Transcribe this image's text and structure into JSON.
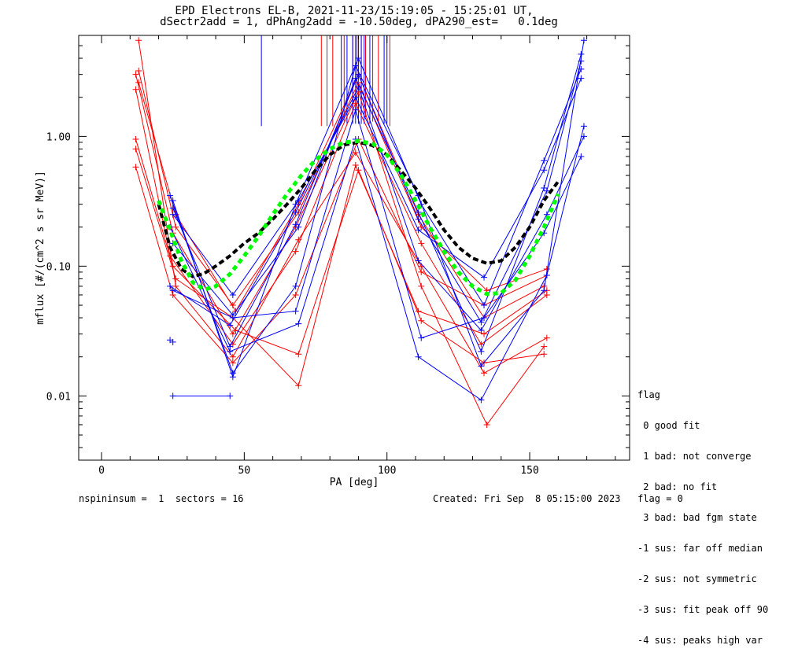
{
  "title_line1": "EPD Electrons EL-B, 2021-11-23/15:19:05 - 15:25:01 UT,",
  "title_line2": "dSectr2add = 1, dPhAng2add = -10.50deg, dPA290_est=   0.1deg",
  "footer_left": "nspininsum =  1  sectors = 16",
  "footer_right": "Created: Fri Sep  8 05:15:00 2023   flag = 0",
  "legend": {
    "title": "flag",
    "items": [
      " 0 good fit",
      " 1 bad: not converge",
      " 2 bad: no fit",
      " 3 bad: bad fgm state",
      "-1 sus: far off median",
      "-2 sus: not symmetric",
      "-3 sus: fit peak off 90",
      "-4 sus: peaks high var"
    ]
  },
  "colors": {
    "red": "#ff0000",
    "blue": "#0000ff",
    "black": "#000000",
    "green": "#00ff00"
  },
  "chart_data": {
    "type": "line",
    "xlabel": "PA [deg]",
    "ylabel": "mflux [#/(cm^2 s sr MeV)]",
    "xlim": [
      -8,
      185
    ],
    "ylim": [
      0.0032,
      6
    ],
    "yscale": "log",
    "xticks": [
      0,
      50,
      100,
      150
    ],
    "yticks": [
      0.01,
      0.1,
      1.0
    ],
    "ytick_labels": [
      "0.01",
      "0.10",
      "1.00"
    ],
    "series": [
      {
        "color": "red",
        "x": [
          13,
          26,
          46,
          69,
          89,
          112,
          134,
          156
        ],
        "y": [
          5.5,
          0.07,
          0.02,
          0.16,
          0.75,
          0.1,
          0.015,
          0.028
        ]
      },
      {
        "color": "red",
        "x": [
          12,
          25,
          46,
          68,
          90,
          112,
          135,
          155
        ],
        "y": [
          3.0,
          0.18,
          0.03,
          0.2,
          2.2,
          0.07,
          0.006,
          0.024
        ]
      },
      {
        "color": "red",
        "x": [
          13,
          26,
          47,
          69,
          90,
          111,
          134,
          155
        ],
        "y": [
          2.6,
          0.25,
          0.045,
          0.3,
          3.0,
          0.25,
          0.04,
          0.07
        ]
      },
      {
        "color": "red",
        "x": [
          12,
          24,
          46,
          68,
          89,
          112,
          133,
          156
        ],
        "y": [
          2.3,
          0.12,
          0.025,
          0.13,
          1.8,
          0.15,
          0.025,
          0.06
        ]
      },
      {
        "color": "red",
        "x": [
          12,
          25,
          47,
          69,
          90,
          112,
          134,
          155
        ],
        "y": [
          0.95,
          0.1,
          0.032,
          0.021,
          0.55,
          0.038,
          0.018,
          0.021
        ]
      },
      {
        "color": "red",
        "x": [
          12,
          26,
          46,
          69,
          89,
          111,
          134,
          156
        ],
        "y": [
          0.8,
          0.08,
          0.04,
          0.012,
          0.6,
          0.045,
          0.03,
          0.065
        ]
      },
      {
        "color": "red",
        "x": [
          12,
          25,
          46,
          68,
          90,
          112,
          134,
          156
        ],
        "y": [
          0.58,
          0.06,
          0.018,
          0.06,
          0.95,
          0.09,
          0.05,
          0.085
        ]
      },
      {
        "color": "red",
        "x": [
          13,
          26,
          46,
          69,
          90,
          112,
          135,
          156
        ],
        "y": [
          3.2,
          0.2,
          0.05,
          0.26,
          2.6,
          0.2,
          0.065,
          0.095
        ]
      },
      {
        "color": "blue",
        "x": [
          24,
          46,
          68,
          89,
          111,
          133,
          155,
          169
        ],
        "y": [
          0.35,
          0.015,
          0.07,
          3.5,
          0.35,
          0.017,
          0.065,
          5.5
        ]
      },
      {
        "color": "blue",
        "x": [
          25,
          45,
          68,
          90,
          111,
          133,
          156,
          168
        ],
        "y": [
          0.28,
          0.024,
          0.21,
          3.0,
          0.23,
          0.037,
          0.38,
          3.8
        ]
      },
      {
        "color": "blue",
        "x": [
          25,
          46,
          69,
          89,
          111,
          134,
          155,
          168
        ],
        "y": [
          0.25,
          0.06,
          0.32,
          2.0,
          0.19,
          0.082,
          0.55,
          2.8
        ]
      },
      {
        "color": "blue",
        "x": [
          24,
          45,
          68,
          90,
          111,
          133,
          156,
          169
        ],
        "y": [
          0.07,
          0.035,
          0.26,
          2.4,
          0.11,
          0.032,
          0.25,
          1.0
        ]
      },
      {
        "color": "blue",
        "x": [
          25,
          46,
          68,
          89,
          112,
          134,
          155,
          168
        ],
        "y": [
          0.065,
          0.04,
          0.045,
          1.6,
          0.028,
          0.04,
          0.18,
          0.7
        ]
      },
      {
        "color": "blue",
        "x": [
          24,
          45,
          69,
          89,
          111,
          133,
          156,
          169
        ],
        "y": [
          0.2,
          0.022,
          0.036,
          0.95,
          0.02,
          0.0093,
          0.085,
          1.2
        ]
      },
      {
        "color": "blue",
        "x": [
          25,
          46,
          68,
          90,
          112,
          134,
          155,
          168
        ],
        "y": [
          0.32,
          0.014,
          0.3,
          4.0,
          0.3,
          0.05,
          0.65,
          3.3
        ]
      },
      {
        "color": "blue",
        "x": [
          25,
          46,
          69,
          89,
          111,
          133,
          155,
          168
        ],
        "y": [
          0.15,
          0.042,
          0.2,
          2.8,
          0.26,
          0.022,
          0.4,
          4.3
        ]
      },
      {
        "color": "blue",
        "x": [
          25,
          45
        ],
        "y": [
          0.01,
          0.01
        ]
      }
    ],
    "extra_points": [
      {
        "color": "blue",
        "x": [
          24,
          25
        ],
        "y": [
          0.027,
          0.026
        ]
      }
    ],
    "vertical_lines": {
      "red": [
        77,
        79,
        81,
        85,
        88,
        89.5,
        91,
        92.5,
        95,
        97,
        101
      ],
      "blue": [
        56,
        84,
        86,
        88,
        89,
        90,
        91,
        92,
        94,
        99,
        100
      ],
      "y_from": [
        [
          1.2,
          6
        ],
        [
          1.2,
          6
        ],
        [
          1.2,
          6
        ],
        [
          1.3,
          6
        ],
        [
          1.4,
          6
        ],
        [
          1.6,
          6
        ],
        [
          1.5,
          6
        ],
        [
          1.4,
          6
        ],
        [
          1.3,
          6
        ],
        [
          1.3,
          6
        ],
        [
          1.2,
          6
        ]
      ]
    },
    "fits": [
      {
        "name": "",
        "color": "black",
        "style": "dashed",
        "x": [
          20,
          24,
          28,
          32,
          36,
          40,
          45,
          50,
          55,
          60,
          65,
          70,
          75,
          80,
          85,
          90,
          95,
          100,
          105,
          110,
          115,
          120,
          125,
          130,
          135,
          140,
          145,
          150,
          155,
          160
        ],
        "y": [
          0.3,
          0.14,
          0.095,
          0.083,
          0.088,
          0.1,
          0.12,
          0.15,
          0.18,
          0.23,
          0.3,
          0.4,
          0.55,
          0.72,
          0.86,
          0.9,
          0.85,
          0.72,
          0.54,
          0.4,
          0.28,
          0.19,
          0.14,
          0.115,
          0.105,
          0.11,
          0.14,
          0.2,
          0.32,
          0.45
        ]
      },
      {
        "name": "",
        "color": "green",
        "style": "dashed",
        "x": [
          20,
          24,
          28,
          32,
          36,
          40,
          45,
          50,
          55,
          60,
          65,
          70,
          75,
          80,
          85,
          90,
          95,
          100,
          105,
          110,
          115,
          120,
          125,
          130,
          135,
          140,
          145,
          150,
          155,
          160
        ],
        "y": [
          0.32,
          0.19,
          0.11,
          0.075,
          0.066,
          0.07,
          0.087,
          0.12,
          0.17,
          0.25,
          0.36,
          0.5,
          0.66,
          0.8,
          0.9,
          0.92,
          0.88,
          0.72,
          0.5,
          0.32,
          0.2,
          0.13,
          0.09,
          0.07,
          0.061,
          0.062,
          0.078,
          0.12,
          0.2,
          0.36
        ]
      }
    ]
  }
}
